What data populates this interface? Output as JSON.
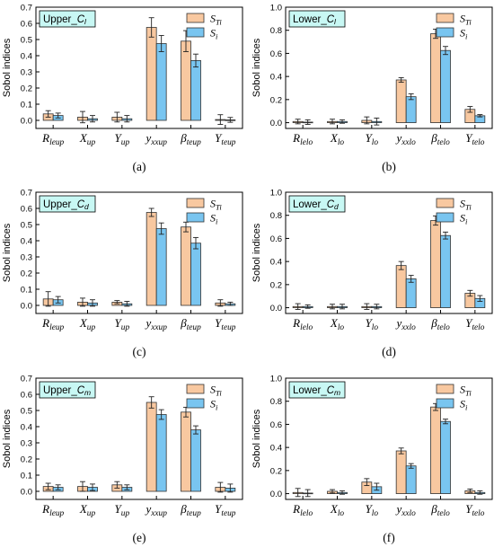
{
  "ylabel": "Sobol indices",
  "legend": {
    "s_ti": "S_Ti",
    "s_i": "S_i"
  },
  "colors": {
    "s_ti": "#f8c8a0",
    "s_i": "#79c5f0",
    "title_box": "#c8f8f4",
    "error": "#222222",
    "axis": "#000000"
  },
  "panel_labels": [
    "(a)",
    "(b)",
    "(c)",
    "(d)",
    "(e)",
    "(f)"
  ],
  "chart_data": [
    {
      "type": "bar",
      "panel": "(a)",
      "title": "Upper_C_l",
      "ylabel": "Sobol indices",
      "ylim": [
        -0.05,
        0.7
      ],
      "yticks": [
        "0.0",
        "0.1",
        "0.2",
        "0.3",
        "0.4",
        "0.5",
        "0.6",
        "0.7"
      ],
      "categories": [
        "R_leup",
        "X_up",
        "Y_up",
        "y_xxup",
        "β_teup",
        "Y_teup"
      ],
      "series": [
        {
          "name": "S_Ti",
          "values": [
            0.04,
            0.02,
            0.02,
            0.575,
            0.49,
            0.005
          ],
          "errors": [
            0.02,
            0.035,
            0.03,
            0.06,
            0.065,
            0.03
          ]
        },
        {
          "name": "S_i",
          "values": [
            0.03,
            0.01,
            0.01,
            0.475,
            0.37,
            0.003
          ],
          "errors": [
            0.015,
            0.02,
            0.02,
            0.05,
            0.04,
            0.015
          ]
        }
      ]
    },
    {
      "type": "bar",
      "panel": "(b)",
      "title": "Lower_C_l",
      "ylabel": "Sobol indices",
      "ylim": [
        -0.05,
        1.0
      ],
      "yticks": [
        "0.0",
        "0.2",
        "0.4",
        "0.6",
        "0.8",
        "1.0"
      ],
      "categories": [
        "R_lelo",
        "X_lo",
        "Y_lo",
        "y_xxlo",
        "β_telo",
        "Y_telo"
      ],
      "series": [
        {
          "name": "S_Ti",
          "values": [
            0.01,
            0.01,
            0.02,
            0.37,
            0.77,
            0.115
          ],
          "errors": [
            0.02,
            0.02,
            0.03,
            0.02,
            0.04,
            0.025
          ]
        },
        {
          "name": "S_i",
          "values": [
            0.005,
            0.01,
            0.01,
            0.225,
            0.625,
            0.06
          ],
          "errors": [
            0.02,
            0.015,
            0.03,
            0.025,
            0.035,
            0.01
          ]
        }
      ]
    },
    {
      "type": "bar",
      "panel": "(c)",
      "title": "Upper_C_d",
      "ylabel": "Sobol indices",
      "ylim": [
        -0.05,
        0.7
      ],
      "yticks": [
        "0.0",
        "0.1",
        "0.2",
        "0.3",
        "0.4",
        "0.5",
        "0.6",
        "0.7"
      ],
      "categories": [
        "R_leup",
        "X_up",
        "Y_up",
        "y_xxup",
        "β_teup",
        "Y_teup"
      ],
      "series": [
        {
          "name": "S_Ti",
          "values": [
            0.04,
            0.02,
            0.02,
            0.575,
            0.485,
            0.015
          ],
          "errors": [
            0.045,
            0.025,
            0.01,
            0.025,
            0.03,
            0.02
          ]
        },
        {
          "name": "S_i",
          "values": [
            0.035,
            0.015,
            0.01,
            0.475,
            0.385,
            0.01
          ],
          "errors": [
            0.02,
            0.02,
            0.015,
            0.035,
            0.035,
            0.01
          ]
        }
      ]
    },
    {
      "type": "bar",
      "panel": "(d)",
      "title": "Lower_C_d",
      "ylabel": "Sobol indices",
      "ylim": [
        -0.05,
        1.0
      ],
      "yticks": [
        "0.0",
        "0.2",
        "0.4",
        "0.6",
        "0.8",
        "1.0"
      ],
      "categories": [
        "R_lelo",
        "X_lo",
        "Y_lo",
        "y_xxlo",
        "β_telo",
        "Y_telo"
      ],
      "series": [
        {
          "name": "S_Ti",
          "values": [
            0.01,
            0.01,
            0.01,
            0.365,
            0.755,
            0.125
          ],
          "errors": [
            0.025,
            0.02,
            0.025,
            0.035,
            0.04,
            0.025
          ]
        },
        {
          "name": "S_i",
          "values": [
            0.01,
            0.01,
            0.01,
            0.25,
            0.625,
            0.08
          ],
          "errors": [
            0.015,
            0.02,
            0.02,
            0.03,
            0.03,
            0.025
          ]
        }
      ]
    },
    {
      "type": "bar",
      "panel": "(e)",
      "title": "Upper_C_m",
      "ylabel": "Sobol indices",
      "ylim": [
        -0.05,
        0.7
      ],
      "yticks": [
        "0.0",
        "0.1",
        "0.2",
        "0.3",
        "0.4",
        "0.5",
        "0.6",
        "0.7"
      ],
      "categories": [
        "R_leup",
        "X_up",
        "Y_up",
        "y_xxup",
        "β_teup",
        "Y_teup"
      ],
      "series": [
        {
          "name": "S_Ti",
          "values": [
            0.03,
            0.03,
            0.04,
            0.55,
            0.49,
            0.025
          ],
          "errors": [
            0.02,
            0.03,
            0.02,
            0.035,
            0.03,
            0.03
          ]
        },
        {
          "name": "S_i",
          "values": [
            0.025,
            0.025,
            0.025,
            0.475,
            0.38,
            0.02
          ],
          "errors": [
            0.015,
            0.02,
            0.015,
            0.03,
            0.025,
            0.025
          ]
        }
      ]
    },
    {
      "type": "bar",
      "panel": "(f)",
      "title": "Lower_C_m",
      "ylabel": "Sobol indices",
      "ylim": [
        -0.05,
        1.0
      ],
      "yticks": [
        "0.0",
        "0.2",
        "0.4",
        "0.6",
        "0.8",
        "1.0"
      ],
      "categories": [
        "R_lelo",
        "X_lo",
        "Y_lo",
        "y_xxlo",
        "β_telo",
        "Y_telo"
      ],
      "series": [
        {
          "name": "S_Ti",
          "values": [
            0.01,
            0.02,
            0.1,
            0.37,
            0.75,
            0.025
          ],
          "errors": [
            0.035,
            0.015,
            0.03,
            0.025,
            0.03,
            0.015
          ]
        },
        {
          "name": "S_i",
          "values": [
            0.005,
            0.01,
            0.06,
            0.24,
            0.625,
            0.01
          ],
          "errors": [
            0.03,
            0.015,
            0.03,
            0.02,
            0.02,
            0.015
          ]
        }
      ]
    }
  ]
}
